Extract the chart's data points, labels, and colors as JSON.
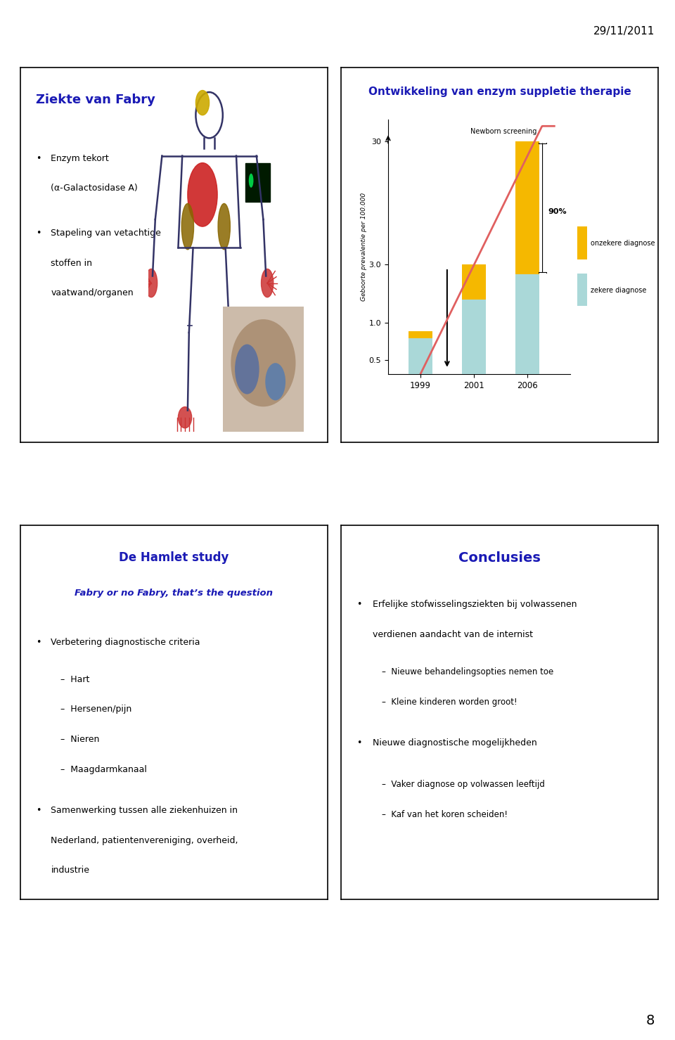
{
  "date_text": "29/11/2011",
  "page_number": "8",
  "panel_tl": {
    "title": "Ziekte van Fabry",
    "title_color": "#1a1ab5",
    "bullet1_line1": "Enzym tekort",
    "bullet1_line2": "(α-Galactosidase A)",
    "bullet2_line1": "Stapeling van vetachtige",
    "bullet2_line2": "stoffen in",
    "bullet2_line3": "vaatwand/organen"
  },
  "panel_tr": {
    "title": "Ontwikkeling van enzym suppletie therapie",
    "title_color": "#1a1ab5",
    "ylabel": "Geboorte prevalentie per 100.000",
    "xtick_labels": [
      "1999",
      "2001",
      "2006"
    ],
    "bar_zeker": [
      0.75,
      1.55,
      2.5
    ],
    "bar_onzeker": [
      0.1,
      1.45,
      27.5
    ],
    "bar_color_zeker": "#aad8d8",
    "bar_color_onzeker": "#f5b800",
    "newborn_label": "Newborn screening",
    "pct_label": "90%",
    "legend_onzeker": "onzekere diagnose",
    "legend_zeker": "zekere diagnose",
    "curve_color": "#e06060"
  },
  "panel_bl": {
    "title1": "De Hamlet study",
    "title1_color": "#1a1ab5",
    "title2": "Fabry or no Fabry, that’s the question",
    "title2_color": "#1a1ab5",
    "bullet1": "Verbetering diagnostische criteria",
    "sub1a": "Hart",
    "sub1b": "Hersenen/pijn",
    "sub1c": "Nieren",
    "sub1d": "Maagdarmkanaal",
    "bullet2_line1": "Samenwerking tussen alle ziekenhuizen in",
    "bullet2_line2": "Nederland, patientenvereniging, overheid,",
    "bullet2_line3": "industrie"
  },
  "panel_br": {
    "title": "Conclusies",
    "title_color": "#1a1ab5",
    "bullet1_line1": "Erfelijke stofwisselingsziekten bij volwassenen",
    "bullet1_line2": "verdienen aandacht van de internist",
    "sub1a": "Nieuwe behandelingsopties nemen toe",
    "sub1b": "Kleine kinderen worden groot!",
    "bullet2": "Nieuwe diagnostische mogelijkheden",
    "sub2a": "Vaker diagnose op volwassen leeftijd",
    "sub2b": "Kaf van het koren scheiden!"
  },
  "panel_positions": {
    "tl": [
      0.03,
      0.575,
      0.455,
      0.36
    ],
    "tr": [
      0.505,
      0.575,
      0.47,
      0.36
    ],
    "bl": [
      0.03,
      0.135,
      0.455,
      0.36
    ],
    "br": [
      0.505,
      0.135,
      0.47,
      0.36
    ]
  },
  "body_color": "#333366",
  "heart_color": "#cc2222",
  "kidney_color": "#886600",
  "hand_foot_color": "#cc3333",
  "head_spot_color": "#ccaa00"
}
